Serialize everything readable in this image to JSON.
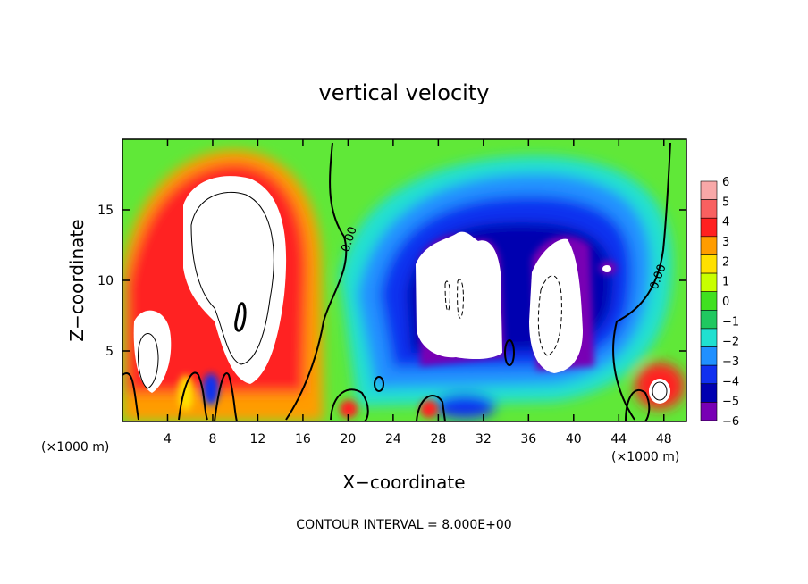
{
  "chart_data": {
    "type": "heatmap",
    "title": "vertical velocity",
    "xlabel": "X−coordinate",
    "ylabel": "Z−coordinate",
    "x_units_label": "(×1000 m)",
    "y_units_label": "(×1000 m)",
    "xlim": [
      0,
      50
    ],
    "ylim": [
      0,
      20
    ],
    "x_ticks": [
      4,
      8,
      12,
      16,
      20,
      24,
      28,
      32,
      36,
      40,
      44,
      48
    ],
    "x_tick_labels": [
      "4",
      "8",
      "12",
      "16",
      "20",
      "24",
      "28",
      "32",
      "36",
      "40",
      "44",
      "48"
    ],
    "y_ticks": [
      5,
      10,
      15
    ],
    "y_tick_labels": [
      "5",
      "10",
      "15"
    ],
    "colorbar": {
      "levels": [
        6,
        5,
        4,
        3,
        2,
        1,
        0,
        -1,
        -2,
        -3,
        -4,
        -5,
        -6
      ],
      "labels": [
        "6",
        "5",
        "4",
        "3",
        "2",
        "1",
        "0",
        "−1",
        "−2",
        "−3",
        "−4",
        "−5",
        "−6"
      ],
      "colors": [
        "#f8a8a8",
        "#f86060",
        "#ff2020",
        "#ff9c00",
        "#ffe000",
        "#c8ff00",
        "#40e020",
        "#20c860",
        "#20e0d0",
        "#2090ff",
        "#1030f0",
        "#0000b0",
        "#7800b4"
      ]
    },
    "contour_labels": [
      "0.00",
      "0.00"
    ],
    "footer": "CONTOUR INTERVAL = 8.000E+00",
    "grid": false
  }
}
